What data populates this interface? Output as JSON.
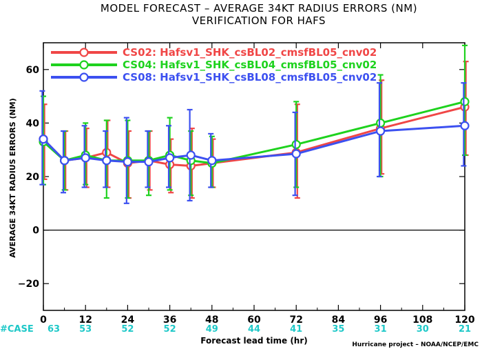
{
  "chart_data": {
    "type": "line",
    "title": "MODEL FORECAST – AVERAGE 34KT RADIUS ERRORS (NM)",
    "subtitle": "VERIFICATION FOR HAFS",
    "xlabel": "Forecast lead time (hr)",
    "ylabel": "AVERAGE 34KT RADIUS ERRORS (NM)",
    "credit": "Hurricane project – NOAA/NCEP/EMC",
    "xlim": [
      0,
      120
    ],
    "ylim": [
      -30,
      70
    ],
    "xticks": [
      0,
      12,
      24,
      36,
      48,
      60,
      72,
      84,
      96,
      108,
      120
    ],
    "yticks": [
      -20,
      0,
      20,
      40,
      60
    ],
    "case_label": "#CASE",
    "cases": [
      {
        "x": 0,
        "n": "63"
      },
      {
        "x": 12,
        "n": "53"
      },
      {
        "x": 24,
        "n": "52"
      },
      {
        "x": 36,
        "n": "52"
      },
      {
        "x": 48,
        "n": "49"
      },
      {
        "x": 60,
        "n": "44"
      },
      {
        "x": 72,
        "n": "41"
      },
      {
        "x": 84,
        "n": "35"
      },
      {
        "x": 96,
        "n": "31"
      },
      {
        "x": 108,
        "n": "30"
      },
      {
        "x": 120,
        "n": "21"
      }
    ],
    "legend_position": "top-left",
    "series": [
      {
        "name": "CS02: Hafsv1_SHK_csBL02_cmsfBL05_cnv02",
        "color": "#f04646",
        "x": [
          0,
          6,
          12,
          18,
          24,
          30,
          36,
          42,
          48,
          72,
          96,
          120
        ],
        "values": [
          34,
          26,
          27,
          29,
          25,
          26,
          24.5,
          24,
          25,
          29,
          38,
          46
        ],
        "err_low": [
          19,
          15,
          16,
          16,
          12,
          15,
          14,
          12,
          16,
          12,
          21,
          28
        ],
        "err_high": [
          47,
          37,
          38,
          41,
          37,
          37,
          34,
          38,
          34,
          47,
          56,
          63
        ]
      },
      {
        "name": "CS04: Hafsv1_SHK_csBL04_cmsfBL05_cnv02",
        "color": "#1ed21e",
        "x": [
          0,
          6,
          12,
          18,
          24,
          30,
          36,
          42,
          48,
          72,
          96,
          120
        ],
        "values": [
          33,
          26,
          28,
          26,
          26,
          26,
          28,
          26,
          25,
          32,
          40,
          48
        ],
        "err_low": [
          17,
          15,
          17,
          12,
          12,
          13,
          15,
          13,
          16,
          16,
          20,
          28
        ],
        "err_high": [
          50,
          37,
          40,
          41,
          41,
          37,
          42,
          37,
          35,
          48,
          58,
          69
        ]
      },
      {
        "name": "CS08: Hafsv1_SHK_csBL08_cmsfBL05_cnv02",
        "color": "#3c50f0",
        "x": [
          0,
          6,
          12,
          18,
          24,
          30,
          36,
          42,
          48,
          72,
          96,
          120
        ],
        "values": [
          34,
          26,
          27,
          26,
          25.5,
          25.5,
          27,
          28,
          26,
          28.5,
          37,
          39
        ],
        "err_low": [
          17,
          14,
          16,
          16,
          10,
          16,
          16,
          11,
          16,
          13,
          20,
          24
        ],
        "err_high": [
          52,
          37,
          39,
          37,
          42,
          37,
          39,
          45,
          36,
          44,
          55,
          55
        ]
      }
    ]
  }
}
